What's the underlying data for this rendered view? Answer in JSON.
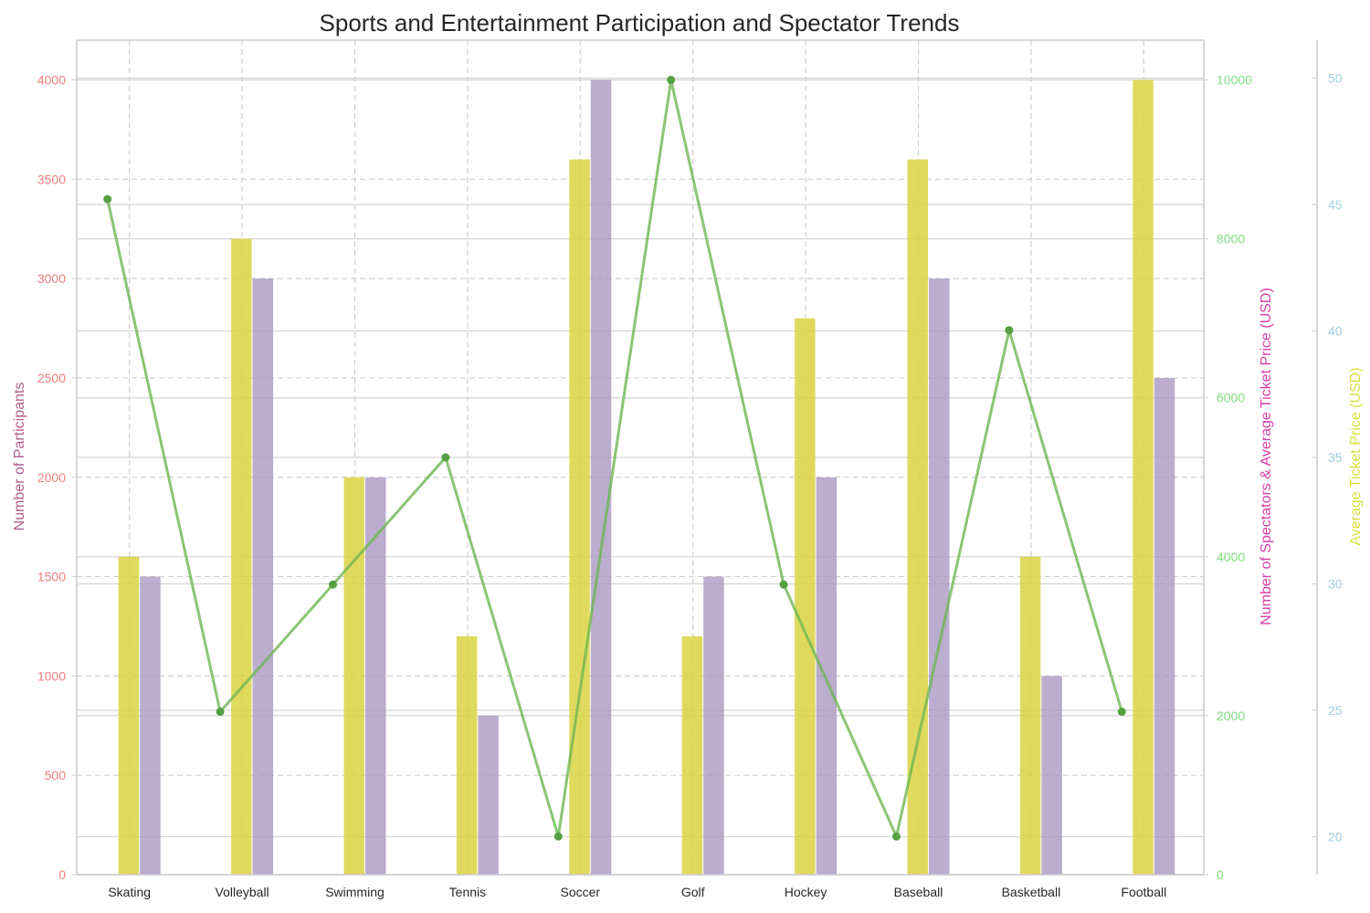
{
  "chart_data": {
    "type": "bar",
    "title": "Sports and Entertainment Participation and Spectator Trends",
    "categories": [
      "Skating",
      "Volleyball",
      "Swimming",
      "Tennis",
      "Soccer",
      "Golf",
      "Hockey",
      "Baseball",
      "Basketball",
      "Football"
    ],
    "axes": {
      "left": {
        "label": "Number of Participants",
        "label_color": "#b05f8e",
        "tick_color": "#f07f7f",
        "range": [
          0,
          4200
        ],
        "ticks": [
          0,
          500,
          1000,
          1500,
          2000,
          2500,
          3000,
          3500,
          4000
        ]
      },
      "right1": {
        "label": "Number of Spectators & Average Ticket Price (USD)",
        "label_color": "#d63fa8",
        "tick_color": "#7fe07f",
        "range": [
          0,
          10500
        ],
        "ticks": [
          0,
          2000,
          4000,
          6000,
          8000,
          10000
        ]
      },
      "right2": {
        "label": "Average Ticket Price (USD)",
        "label_color": "#d8e040",
        "tick_color": "#9fd0e0",
        "range": [
          18.5,
          51.5
        ],
        "ticks": [
          20,
          25,
          30,
          35,
          40,
          45,
          50
        ]
      }
    },
    "series": [
      {
        "kind": "bar",
        "axis": "left",
        "color": "#d9d441",
        "values": [
          1600,
          3200,
          2000,
          1200,
          3600,
          1200,
          2800,
          3600,
          1600,
          4000
        ]
      },
      {
        "kind": "bar",
        "axis": "left",
        "color": "#a999c0",
        "values": [
          1500,
          3000,
          2000,
          800,
          4000,
          1500,
          2000,
          3000,
          1000,
          2500
        ]
      },
      {
        "kind": "line",
        "axis": "right1",
        "color": "#6db653",
        "marker_color": "#54a042",
        "values": [
          8500,
          2050,
          3650,
          5250,
          480,
          10000,
          3650,
          480,
          6850,
          2050
        ]
      }
    ],
    "grid": true,
    "legend": "none"
  }
}
